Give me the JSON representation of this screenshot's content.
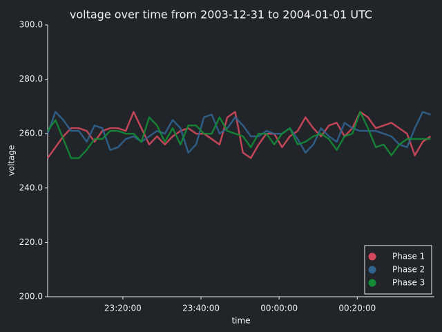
{
  "chart_data": {
    "type": "line",
    "title": "voltage over time from 2003-12-31 to 2004-01-01 UTC",
    "xlabel": "time",
    "ylabel": "voltage",
    "x": [
      "23:00:45",
      "23:02:45",
      "23:04:45",
      "23:06:45",
      "23:08:45",
      "23:10:45",
      "23:12:45",
      "23:14:45",
      "23:16:45",
      "23:18:45",
      "23:20:45",
      "23:22:45",
      "23:24:45",
      "23:26:45",
      "23:28:45",
      "23:30:45",
      "23:32:45",
      "23:34:45",
      "23:36:45",
      "23:38:45",
      "23:40:45",
      "23:42:45",
      "23:44:45",
      "23:46:45",
      "23:48:45",
      "23:50:45",
      "23:52:45",
      "23:54:45",
      "23:56:45",
      "23:58:45",
      "00:00:45",
      "00:02:45",
      "00:04:45",
      "00:06:45",
      "00:08:45",
      "00:10:45",
      "00:12:45",
      "00:14:45",
      "00:16:45",
      "00:18:45",
      "00:20:45",
      "00:22:45",
      "00:24:45",
      "00:26:45",
      "00:28:45",
      "00:30:45",
      "00:32:45",
      "00:34:45",
      "00:36:45",
      "00:38:45"
    ],
    "series": [
      {
        "name": "Phase 1",
        "color": "#d1495b",
        "values": [
          251,
          255,
          259,
          262,
          262,
          261,
          257,
          261,
          262,
          262,
          261,
          268,
          262,
          256,
          259,
          256,
          259,
          261,
          262,
          260,
          260,
          258,
          256,
          266,
          268,
          253,
          251,
          256,
          260,
          260,
          255,
          259,
          261,
          266,
          262,
          259,
          263,
          264,
          259,
          262,
          268,
          266,
          262,
          263,
          264,
          262,
          260,
          252,
          257,
          259
        ]
      },
      {
        "name": "Phase 2",
        "color": "#30638e",
        "values": [
          260,
          268,
          265,
          261,
          261,
          257,
          263,
          262,
          254,
          255,
          258,
          259,
          257,
          259,
          261,
          260,
          265,
          262,
          253,
          256,
          266,
          267,
          260,
          262,
          266,
          263,
          259,
          259,
          261,
          260,
          260,
          262,
          258,
          253,
          256,
          262,
          259,
          257,
          264,
          262,
          261,
          261,
          261,
          260,
          259,
          256,
          255,
          262,
          268,
          267
        ]
      },
      {
        "name": "Phase 3",
        "color": "#138a36",
        "values": [
          261,
          265,
          258,
          251,
          251,
          254,
          258,
          258,
          261,
          261,
          260,
          260,
          257,
          266,
          263,
          257,
          262,
          256,
          263,
          263,
          260,
          260,
          266,
          261,
          260,
          259,
          255,
          260,
          260,
          256,
          260,
          262,
          256,
          257,
          259,
          260,
          258,
          254,
          259,
          260,
          268,
          262,
          255,
          256,
          252,
          256,
          258,
          258,
          258,
          258
        ]
      }
    ],
    "xlim": [
      "23:00:45",
      "00:39:45"
    ],
    "xticks": [
      "23:20:00",
      "23:40:00",
      "00:00:00",
      "00:20:00"
    ],
    "ylim": [
      200,
      300
    ],
    "yticks": [
      {
        "value": 200,
        "label": "200.0"
      },
      {
        "value": 220,
        "label": "220.0"
      },
      {
        "value": 240,
        "label": "240.0"
      },
      {
        "value": 260,
        "label": "260.0"
      },
      {
        "value": 280,
        "label": "280.0"
      },
      {
        "value": 300,
        "label": "300.0"
      }
    ],
    "grid": false,
    "legend": "lower right"
  }
}
